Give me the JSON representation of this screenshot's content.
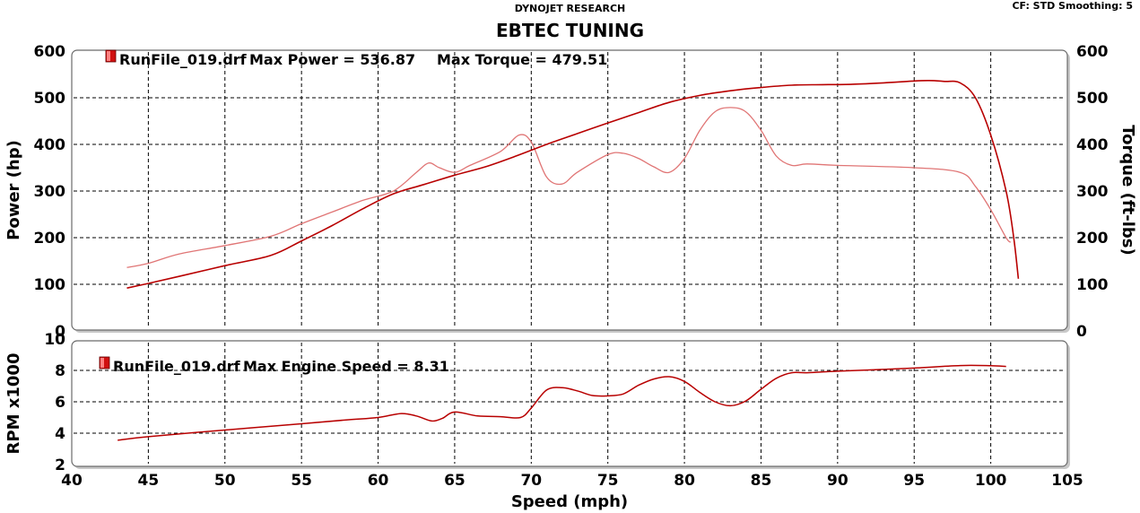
{
  "header": {
    "subtitle": "DYNOJET RESEARCH",
    "title": "EBTEC TUNING",
    "settings": "CF: STD  Smoothing: 5"
  },
  "colors": {
    "power": "#b80000",
    "torque": "#e07575",
    "rpm": "#b80000",
    "legend_box": "#d01010",
    "grid": "#000000"
  },
  "chart_data": [
    {
      "type": "line",
      "title": "EBTEC TUNING",
      "xlabel": "Speed (mph)",
      "ylabel": "Power (hp)",
      "y2label": "Torque (ft-lbs)",
      "xlim": [
        40,
        105
      ],
      "ylim": [
        0,
        600
      ],
      "y2lim": [
        0,
        600
      ],
      "xticks": [
        "40",
        "45",
        "50",
        "55",
        "60",
        "65",
        "70",
        "75",
        "80",
        "85",
        "90",
        "95",
        "100",
        "105"
      ],
      "yticks": [
        "0",
        "100",
        "200",
        "300",
        "400",
        "500",
        "600"
      ],
      "y2ticks": [
        "0",
        "100",
        "200",
        "300",
        "400",
        "500",
        "600"
      ],
      "grid": true,
      "legend": {
        "file": "RunFile_019.drf",
        "power_text": "Max Power = 536.87",
        "torque_text": "Max Torque = 479.51"
      },
      "series": [
        {
          "name": "Power",
          "axis": "left",
          "x": [
            43.6,
            45,
            47,
            50,
            53,
            55,
            57,
            59,
            61,
            63,
            65,
            67,
            69,
            71,
            73,
            75,
            77,
            79,
            81,
            83,
            85,
            87,
            89,
            91,
            93,
            95,
            96,
            97,
            98,
            99,
            100,
            101,
            101.5,
            101.8
          ],
          "y": [
            92,
            102,
            117,
            140,
            162,
            193,
            226,
            262,
            294,
            314,
            334,
            352,
            375,
            400,
            423,
            446,
            468,
            490,
            505,
            515,
            522,
            527,
            528,
            529,
            532,
            536,
            537,
            535,
            532,
            500,
            420,
            300,
            200,
            112
          ]
        },
        {
          "name": "Torque",
          "axis": "right",
          "x": [
            43.6,
            45,
            47,
            50,
            53,
            55,
            57,
            59,
            61,
            62.5,
            63.3,
            64,
            65,
            66,
            68,
            69.2,
            70,
            71,
            72,
            73,
            75,
            76,
            77,
            78,
            79,
            80,
            81,
            82,
            83,
            84,
            85,
            86,
            87,
            88,
            90,
            95,
            98,
            99,
            100,
            101,
            101.3
          ],
          "y": [
            136,
            145,
            165,
            183,
            203,
            230,
            255,
            280,
            300,
            340,
            360,
            350,
            340,
            355,
            385,
            420,
            405,
            330,
            315,
            340,
            378,
            381,
            370,
            352,
            340,
            370,
            430,
            470,
            479,
            470,
            430,
            375,
            355,
            358,
            355,
            350,
            340,
            310,
            260,
            200,
            190
          ]
        }
      ]
    },
    {
      "type": "line",
      "xlabel": "Speed (mph)",
      "ylabel": "RPM x1000",
      "xlim": [
        40,
        105
      ],
      "ylim": [
        2,
        10
      ],
      "xticks": [
        "40",
        "45",
        "50",
        "55",
        "60",
        "65",
        "70",
        "75",
        "80",
        "85",
        "90",
        "95",
        "100",
        "105"
      ],
      "yticks": [
        "2",
        "4",
        "6",
        "8",
        "10"
      ],
      "grid": true,
      "legend": {
        "file": "RunFile_019.drf",
        "text": "Max Engine Speed = 8.31"
      },
      "series": [
        {
          "name": "Engine Speed",
          "x": [
            43,
            45,
            50,
            55,
            58,
            60,
            61.5,
            62.5,
            63.5,
            64.2,
            65,
            66.5,
            68,
            69.3,
            70,
            71,
            72,
            73,
            74,
            75,
            76,
            77,
            78,
            79,
            80,
            81,
            82,
            83,
            84,
            85,
            86,
            87,
            88,
            90,
            95,
            98,
            100,
            101
          ],
          "y": [
            3.55,
            3.78,
            4.2,
            4.6,
            4.85,
            5.0,
            5.25,
            5.1,
            4.78,
            4.95,
            5.35,
            5.1,
            5.05,
            5.0,
            5.6,
            6.75,
            6.9,
            6.7,
            6.4,
            6.38,
            6.5,
            7.05,
            7.45,
            7.6,
            7.3,
            6.6,
            6.0,
            5.75,
            6.05,
            6.8,
            7.5,
            7.85,
            7.85,
            7.95,
            8.15,
            8.31,
            8.3,
            8.25
          ]
        }
      ]
    }
  ]
}
